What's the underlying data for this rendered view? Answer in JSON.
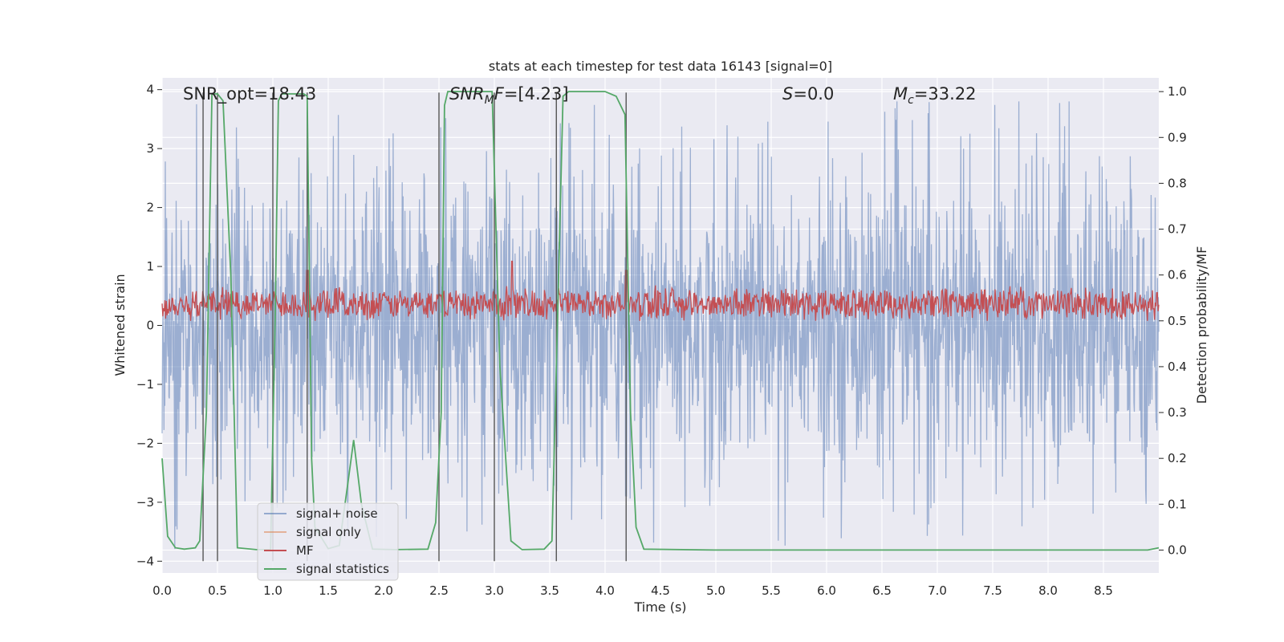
{
  "chart_data": {
    "type": "line",
    "title": "stats at each timestep for test data 16143 [signal=0]",
    "xlabel": "Time (s)",
    "ylabel_left": "Whitened strain",
    "ylabel_right": "Detection probability/MF",
    "xlim": [
      0.0,
      9.0
    ],
    "ylim_left": [
      -4.2,
      4.2
    ],
    "ylim_right": [
      -0.05,
      1.03
    ],
    "x_ticks": [
      "0.0",
      "0.5",
      "1.0",
      "1.5",
      "2.0",
      "2.5",
      "3.0",
      "3.5",
      "4.0",
      "4.5",
      "5.0",
      "5.5",
      "6.0",
      "6.5",
      "7.0",
      "7.5",
      "8.0",
      "8.5"
    ],
    "y_ticks_left": [
      "4",
      "3",
      "2",
      "1",
      "0",
      "−1",
      "−2",
      "−3",
      "−4"
    ],
    "y_ticks_right": [
      "1.0",
      "0.9",
      "0.8",
      "0.7",
      "0.6",
      "0.5",
      "0.4",
      "0.3",
      "0.2",
      "0.1",
      "0.0"
    ],
    "grid": true,
    "legend_position": "lower-left",
    "annotations": [
      {
        "id": "snr-opt",
        "text": "SNR_opt=18.43"
      },
      {
        "id": "snr-mf",
        "text": "SNR_MF=[4.23]",
        "math_base": "SNR",
        "math_sub": "M",
        "math_rest": "F=[4.23]"
      },
      {
        "id": "s",
        "text": "S=0.0",
        "math_base": "S",
        "math_rest": "=0.0"
      },
      {
        "id": "mc",
        "text": "M_c=33.22",
        "math_base": "M",
        "math_sub": "c",
        "math_rest": "=33.22"
      }
    ],
    "vertical_lines_x": [
      0.37,
      0.5,
      1.0,
      1.31,
      2.5,
      3.0,
      3.56,
      4.19
    ],
    "series": [
      {
        "name": "signal+ noise",
        "color": "#4c72b0",
        "axis": "left",
        "style": "dense noise, |values| mostly within 2.5, peaks near 3.8",
        "amplitude_envelope": 2.6,
        "peak_max": 3.8,
        "peak_min": -4.0
      },
      {
        "name": "signal only",
        "color": "#dd8452",
        "axis": "left",
        "values": []
      },
      {
        "name": "MF",
        "color": "#c44e52",
        "axis": "right",
        "style": "noisy band",
        "range": [
          0.5,
          0.62
        ],
        "peaks": [
          [
            1.31,
            0.61
          ],
          [
            3.16,
            0.63
          ],
          [
            4.19,
            0.61
          ]
        ]
      },
      {
        "name": "signal statistics",
        "color": "#55a868",
        "axis": "right",
        "x": [
          0.0,
          0.05,
          0.12,
          0.2,
          0.3,
          0.34,
          0.4,
          0.45,
          0.5,
          0.55,
          0.62,
          0.68,
          0.85,
          0.98,
          1.02,
          1.05,
          1.08,
          1.12,
          1.2,
          1.28,
          1.31,
          1.35,
          1.38,
          1.5,
          1.6,
          1.68,
          1.73,
          1.8,
          1.9,
          2.1,
          2.4,
          2.47,
          2.52,
          2.55,
          2.58,
          2.65,
          2.8,
          2.98,
          3.05,
          3.15,
          3.25,
          3.45,
          3.52,
          3.57,
          3.62,
          3.67,
          3.8,
          4.0,
          4.1,
          4.18,
          4.23,
          4.28,
          4.35,
          5.0,
          6.0,
          7.0,
          8.0,
          8.9,
          9.0
        ],
        "y": [
          0.2,
          0.03,
          0.005,
          0.002,
          0.005,
          0.02,
          0.3,
          0.995,
          0.995,
          0.98,
          0.6,
          0.005,
          0.001,
          0.001,
          0.5,
          0.98,
          0.995,
          0.995,
          0.995,
          0.995,
          0.99,
          0.2,
          0.05,
          0.003,
          0.01,
          0.15,
          0.24,
          0.1,
          0.002,
          0.001,
          0.002,
          0.06,
          0.3,
          0.97,
          1.0,
          1.0,
          1.0,
          1.0,
          0.4,
          0.02,
          0.001,
          0.002,
          0.02,
          0.5,
          0.99,
          1.0,
          1.0,
          1.0,
          0.99,
          0.95,
          0.3,
          0.05,
          0.002,
          0.0,
          0.0,
          0.0,
          0.0,
          0.0,
          0.005
        ]
      }
    ]
  }
}
